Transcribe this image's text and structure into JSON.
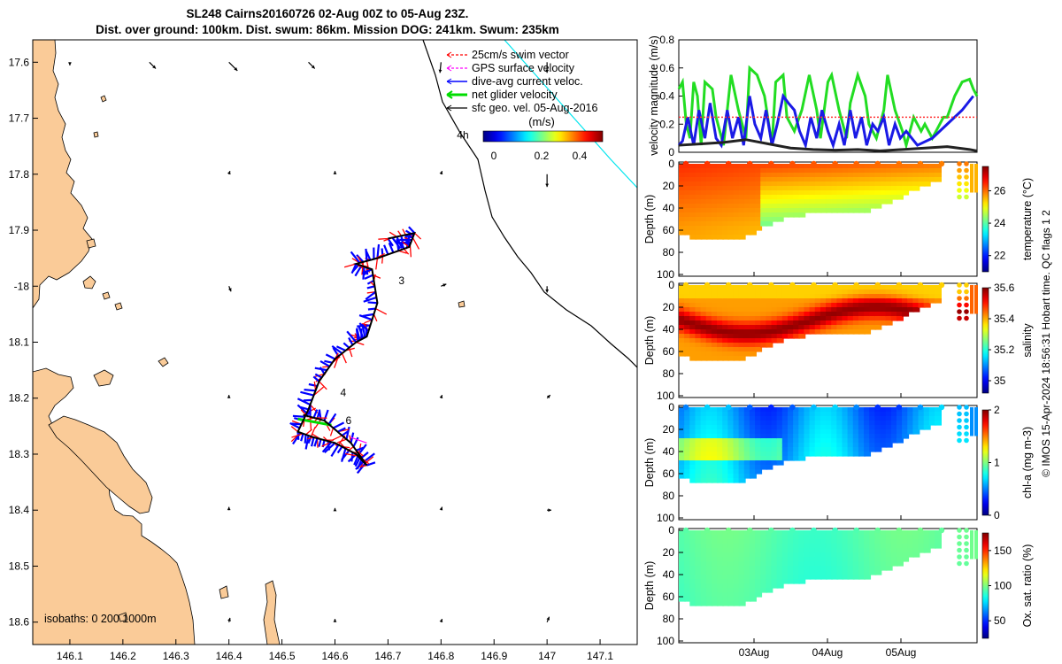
{
  "figure": {
    "title_line1": "SL248 Cairns20160726 02-Aug 00Z to 05-Aug 23Z.",
    "title_line2": "Dist. over ground: 100km. Dist. swum: 86km. Mission DOG: 241km. Swum: 235km",
    "copyright": "© IMOS 15-Apr-2024 18:56:31 Hobart time. QC flags 1  2"
  },
  "colors": {
    "land": "#FACB98",
    "swim_vector": "#FF0000",
    "gps_velocity": "#FF00FF",
    "dive_avg_current": "#0000FF",
    "net_glider_velocity": "#00DD00",
    "sfc_geo_vel": "#000000",
    "isobath_200": "#000000",
    "isobath_1000": "#00E5EE"
  },
  "chart_data": [
    {
      "type": "map",
      "name": "glider track map",
      "xlabel": "",
      "ylabel": "",
      "xlim": [
        146.03,
        147.17
      ],
      "ylim": [
        -18.64,
        -17.56
      ],
      "xticks": [
        146.1,
        146.2,
        146.3,
        146.4,
        146.5,
        146.6,
        146.7,
        146.8,
        146.9,
        147,
        147.1
      ],
      "xtick_labels": [
        "146.1",
        "146.2",
        "146.3",
        "146.4",
        "146.5",
        "146.6",
        "146.7",
        "146.8",
        "146.9",
        "147",
        "147.1"
      ],
      "yticks": [
        -17.6,
        -17.7,
        -17.8,
        -17.9,
        -18.0,
        -18.1,
        -18.2,
        -18.3,
        -18.4,
        -18.5,
        -18.6
      ],
      "ytick_labels": [
        "17.6",
        "17.7",
        "17.8",
        "17.9",
        "-18",
        "18.1",
        "18.2",
        "18.3",
        "18.4",
        "18.5",
        "18.6"
      ],
      "legend": {
        "placement": "top-right",
        "entries": [
          "25cm/s swim vector",
          "GPS surface velocity",
          "dive-avg current veloc.",
          "net glider velocity",
          "sfc geo. vel. 05-Aug-2016"
        ]
      },
      "colorbar": {
        "title": "(m/s)",
        "ticks": [
          "0",
          "0.2",
          "0.4"
        ],
        "range": [
          0,
          0.5
        ]
      },
      "isobaths_label": "isobaths: 0   200  1000m",
      "annotations": [
        {
          "text": "4h",
          "lon": 146.83,
          "lat": -17.73
        },
        {
          "text": "3",
          "lon": 146.72,
          "lat": -17.99
        },
        {
          "text": "4",
          "lon": 146.61,
          "lat": -18.19
        },
        {
          "text": "6",
          "lon": 146.62,
          "lat": -18.24
        }
      ],
      "track": [
        [
          146.7,
          -17.915
        ],
        [
          146.75,
          -17.905
        ],
        [
          146.74,
          -17.93
        ],
        [
          146.68,
          -17.95
        ],
        [
          146.64,
          -17.96
        ],
        [
          146.67,
          -17.97
        ],
        [
          146.68,
          -18.03
        ],
        [
          146.66,
          -18.09
        ],
        [
          146.64,
          -18.1
        ],
        [
          146.6,
          -18.13
        ],
        [
          146.57,
          -18.17
        ],
        [
          146.55,
          -18.22
        ],
        [
          146.53,
          -18.26
        ],
        [
          146.56,
          -18.27
        ],
        [
          146.6,
          -18.28
        ],
        [
          146.64,
          -18.3
        ],
        [
          146.66,
          -18.32
        ],
        [
          146.63,
          -18.28
        ],
        [
          146.58,
          -18.24
        ],
        [
          146.54,
          -18.23
        ]
      ],
      "geo_vectors": [
        {
          "lon": 146.1,
          "lat": -17.6,
          "u": 0.0,
          "v": -0.3
        },
        {
          "lon": 146.25,
          "lat": -17.6,
          "u": 0.6,
          "v": -0.6
        },
        {
          "lon": 146.4,
          "lat": -17.6,
          "u": 0.8,
          "v": -0.8
        },
        {
          "lon": 146.55,
          "lat": -17.6,
          "u": 0.6,
          "v": -0.6
        },
        {
          "lon": 146.8,
          "lat": -17.6,
          "u": -0.1,
          "v": -1.0
        },
        {
          "lon": 147,
          "lat": -17.6,
          "u": 0.0,
          "v": -1.0
        },
        {
          "lon": 146.4,
          "lat": -17.8,
          "u": 0.1,
          "v": 0.3
        },
        {
          "lon": 146.6,
          "lat": -17.8,
          "u": 0.0,
          "v": 0.3
        },
        {
          "lon": 146.8,
          "lat": -17.8,
          "u": 0.1,
          "v": 0.3
        },
        {
          "lon": 147,
          "lat": -17.8,
          "u": 0.0,
          "v": -1.2
        },
        {
          "lon": 146.4,
          "lat": -18.0,
          "u": 0.2,
          "v": -0.5
        },
        {
          "lon": 146.8,
          "lat": -18.0,
          "u": 0.5,
          "v": 0.2
        },
        {
          "lon": 147,
          "lat": -18.0,
          "u": 0.0,
          "v": -0.6
        },
        {
          "lon": 146.4,
          "lat": -18.2,
          "u": 0.0,
          "v": 0.3
        },
        {
          "lon": 146.8,
          "lat": -18.2,
          "u": 0.1,
          "v": 0.3
        },
        {
          "lon": 147,
          "lat": -18.2,
          "u": 0.3,
          "v": 0.3
        },
        {
          "lon": 146.4,
          "lat": -18.4,
          "u": 0.0,
          "v": 0.3
        },
        {
          "lon": 146.6,
          "lat": -18.4,
          "u": 0.0,
          "v": 0.2
        },
        {
          "lon": 146.8,
          "lat": -18.4,
          "u": 0.1,
          "v": 0.3
        },
        {
          "lon": 147,
          "lat": -18.4,
          "u": 0.4,
          "v": 0.0
        },
        {
          "lon": 146.4,
          "lat": -18.6,
          "u": 0.1,
          "v": 0.4
        },
        {
          "lon": 146.6,
          "lat": -18.6,
          "u": 0.0,
          "v": 0.3
        },
        {
          "lon": 146.8,
          "lat": -18.6,
          "u": 0.1,
          "v": 0.3
        },
        {
          "lon": 147,
          "lat": -18.6,
          "u": 0.2,
          "v": 0.5
        }
      ]
    },
    {
      "type": "line",
      "name": "velocity magnitude",
      "ylabel": "velocity magnitude (m/s)",
      "ylim": [
        0,
        0.8
      ],
      "yticks": [
        0,
        0.2,
        0.4,
        0.6,
        0.8
      ],
      "ytick_labels": [
        "0",
        "0.2",
        "0.4",
        "0.6",
        "0.8"
      ],
      "xlim": [
        0,
        4
      ],
      "series": [
        {
          "name": "net glider velocity",
          "color": "#22DD22",
          "x": [
            0.0,
            0.05,
            0.1,
            0.15,
            0.2,
            0.25,
            0.3,
            0.35,
            0.45,
            0.5,
            0.6,
            0.7,
            0.8,
            0.9,
            0.95,
            1.05,
            1.15,
            1.25,
            1.3,
            1.4,
            1.45,
            1.55,
            1.65,
            1.75,
            1.85,
            1.9,
            2.0,
            2.05,
            2.15,
            2.25,
            2.3,
            2.4,
            2.5,
            2.55,
            2.65,
            2.75,
            2.8,
            2.9,
            3.0,
            3.05,
            3.15,
            3.25,
            3.3,
            3.4,
            3.45,
            3.55,
            3.6,
            3.7,
            3.8,
            3.9,
            3.95,
            4.0
          ],
          "y": [
            0.45,
            0.5,
            0.2,
            0.1,
            0.5,
            0.4,
            0.05,
            0.5,
            0.45,
            0.25,
            0.05,
            0.55,
            0.3,
            0.1,
            0.6,
            0.55,
            0.4,
            0.05,
            0.5,
            0.55,
            0.25,
            0.15,
            0.3,
            0.55,
            0.3,
            0.1,
            0.5,
            0.55,
            0.3,
            0.1,
            0.35,
            0.55,
            0.4,
            0.2,
            0.1,
            0.3,
            0.55,
            0.3,
            0.15,
            0.05,
            0.25,
            0.15,
            0.2,
            0.1,
            0.15,
            0.25,
            0.25,
            0.4,
            0.5,
            0.52,
            0.45,
            0.4
          ]
        },
        {
          "name": "dive-avg current veloc.",
          "color": "#1A1AE6",
          "x": [
            0.0,
            0.05,
            0.12,
            0.2,
            0.27,
            0.35,
            0.42,
            0.5,
            0.57,
            0.65,
            0.72,
            0.8,
            0.87,
            0.95,
            1.02,
            1.1,
            1.17,
            1.25,
            1.32,
            1.4,
            1.47,
            1.55,
            1.62,
            1.7,
            1.77,
            1.85,
            1.92,
            2.0,
            2.07,
            2.15,
            2.22,
            2.3,
            2.37,
            2.45,
            2.52,
            2.6,
            2.67,
            2.75,
            2.82,
            2.9,
            2.97,
            3.05,
            3.2,
            3.4,
            3.6,
            3.8,
            3.95
          ],
          "y": [
            0.05,
            0.08,
            0.25,
            0.05,
            0.3,
            0.1,
            0.35,
            0.1,
            0.05,
            0.3,
            0.1,
            0.25,
            0.05,
            0.4,
            0.2,
            0.1,
            0.3,
            0.05,
            0.2,
            0.4,
            0.35,
            0.3,
            0.15,
            0.05,
            0.25,
            0.1,
            0.3,
            0.15,
            0.05,
            0.2,
            0.05,
            0.3,
            0.1,
            0.25,
            0.05,
            0.2,
            0.15,
            0.25,
            0.05,
            0.2,
            0.1,
            0.15,
            0.05,
            0.1,
            0.2,
            0.3,
            0.4
          ]
        },
        {
          "name": "sfc geo. vel.",
          "color": "#222222",
          "x": [
            0.0,
            0.3,
            0.6,
            0.9,
            1.2,
            1.5,
            1.8,
            2.1,
            2.4,
            2.7,
            3.0,
            3.3,
            3.6,
            3.9,
            4.0
          ],
          "y": [
            0.05,
            0.06,
            0.07,
            0.09,
            0.06,
            0.03,
            0.02,
            0.015,
            0.02,
            0.01,
            0.02,
            0.03,
            0.04,
            0.02,
            0.01
          ]
        },
        {
          "name": "25cm/s swim vector",
          "color": "#FF3333",
          "dashed": true,
          "x": [
            0.0,
            4.0
          ],
          "y": [
            0.25,
            0.25
          ]
        }
      ]
    },
    {
      "type": "heatmap",
      "name": "temperature section",
      "ylabel": "Depth (m)",
      "colorbar_label": "temperature (°C)",
      "ylim": [
        0,
        100
      ],
      "yticks": [
        "0",
        "20",
        "40",
        "60",
        "80",
        "100"
      ],
      "colorbar_ticks": [
        "22",
        "24",
        "26"
      ],
      "crange": [
        21,
        27.5
      ]
    },
    {
      "type": "heatmap",
      "name": "salinity section",
      "ylabel": "Depth (m)",
      "colorbar_label": "salinity",
      "ylim": [
        0,
        100
      ],
      "yticks": [
        "0",
        "20",
        "40",
        "60",
        "80",
        "100"
      ],
      "colorbar_ticks": [
        "35",
        "35.2",
        "35.4",
        "35.6"
      ],
      "crange": [
        34.92,
        35.6
      ]
    },
    {
      "type": "heatmap",
      "name": "chlorophyll section",
      "ylabel": "Depth (m)",
      "colorbar_label": "chl-a (mg m-3)",
      "ylim": [
        0,
        100
      ],
      "yticks": [
        "0",
        "20",
        "40",
        "60",
        "80",
        "100"
      ],
      "colorbar_ticks": [
        "0",
        "1",
        "2"
      ],
      "crange": [
        0,
        2
      ]
    },
    {
      "type": "heatmap",
      "name": "oxygen section",
      "ylabel": "Depth (m)",
      "colorbar_label": "Ox. sat. ratio (%)",
      "ylim": [
        0,
        100
      ],
      "yticks": [
        "0",
        "20",
        "40",
        "60",
        "80",
        "100"
      ],
      "xtick_labels": [
        "03Aug",
        "04Aug",
        "05Aug"
      ],
      "colorbar_ticks": [
        "50",
        "100",
        "150"
      ],
      "crange": [
        25,
        175
      ]
    }
  ]
}
